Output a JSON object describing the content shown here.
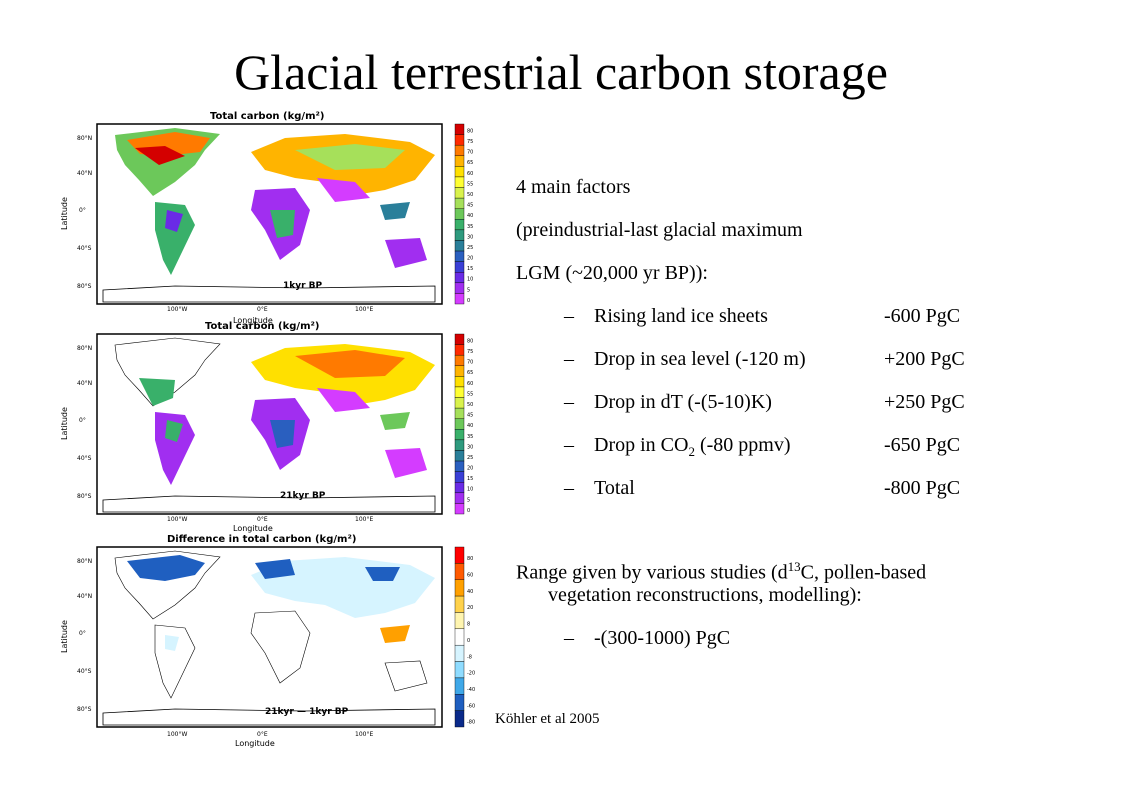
{
  "slide": {
    "title": "Glacial terrestrial carbon storage",
    "citation": "Köhler et al 2005"
  },
  "maps": [
    {
      "title": "Total carbon (kg/m²)",
      "period": "1kyr BP",
      "xlabel": "Longitude",
      "ylabel": "Latitude",
      "lat_ticks": [
        "80°N",
        "40°N",
        "0°",
        "40°S",
        "80°S"
      ],
      "lon_ticks": [
        "100°W",
        "0°E",
        "100°E"
      ],
      "scale": [
        "80",
        "75",
        "70",
        "65",
        "60",
        "55",
        "50",
        "45",
        "40",
        "35",
        "30",
        "25",
        "20",
        "15",
        "10",
        "5",
        "0"
      ]
    },
    {
      "title": "Total carbon (kg/m²)",
      "period": "21kyr BP",
      "xlabel": "Longitude",
      "ylabel": "Latitude",
      "lat_ticks": [
        "80°N",
        "40°N",
        "0°",
        "40°S",
        "80°S"
      ],
      "lon_ticks": [
        "100°W",
        "0°E",
        "100°E"
      ],
      "scale": [
        "80",
        "75",
        "70",
        "65",
        "60",
        "55",
        "50",
        "45",
        "40",
        "35",
        "30",
        "25",
        "20",
        "15",
        "10",
        "5",
        "0"
      ]
    },
    {
      "title": "Difference in total carbon (kg/m²)",
      "period": "21kyr — 1kyr BP",
      "xlabel": "Longitude",
      "ylabel": "Latitude",
      "lat_ticks": [
        "80°N",
        "40°N",
        "0°",
        "40°S",
        "80°S"
      ],
      "lon_ticks": [
        "100°W",
        "0°E",
        "100°E"
      ],
      "scale": [
        "80",
        "60",
        "40",
        "20",
        "8",
        "0",
        "-8",
        "-20",
        "-40",
        "-60",
        "-80"
      ]
    }
  ],
  "text": {
    "l1": "4 main factors",
    "l2": "(preindustrial-last glacial maximum",
    "l3": "LGM (~20,000 yr BP)):",
    "dash": "–",
    "factors": [
      {
        "label": "Rising land ice sheets",
        "value": "-600 PgC"
      },
      {
        "label": "Drop in sea level (-120 m)",
        "value": "+200 PgC"
      },
      {
        "label": "Drop in dT (-(5-10)K)",
        "value": "+250 PgC"
      },
      {
        "label_pre": "Drop in CO",
        "label_sub": "2",
        "label_post": " (-80 ppmv)",
        "value": "-650 PgC"
      },
      {
        "label": "Total",
        "value": "-800 PgC"
      }
    ],
    "range_pre": "Range given by various studies (d",
    "range_sup": "13",
    "range_post": "C, pollen-based",
    "range_l2": "vegetation reconstructions, modelling):",
    "range_value": "-(300-1000) PgC"
  },
  "colors": {
    "scale_total": [
      "#d40000",
      "#ff2a00",
      "#ff7a00",
      "#ffb400",
      "#ffe000",
      "#ffff33",
      "#d9f24c",
      "#a6e05a",
      "#6cc85a",
      "#39b06a",
      "#2e9a7e",
      "#2a7f9a",
      "#2a5fbf",
      "#3a3fd6",
      "#6a2be6",
      "#a12ef0",
      "#d43cff"
    ],
    "scale_diff": [
      "#ff0000",
      "#ff5a00",
      "#ffa000",
      "#ffd24c",
      "#fff5b0",
      "#ffffff",
      "#d6f4ff",
      "#8fdcff",
      "#3fa8e8",
      "#1f5fc0",
      "#0a2a8a"
    ],
    "land_fill": "#e0e0e0",
    "ocean_fill": "#ffffff"
  }
}
